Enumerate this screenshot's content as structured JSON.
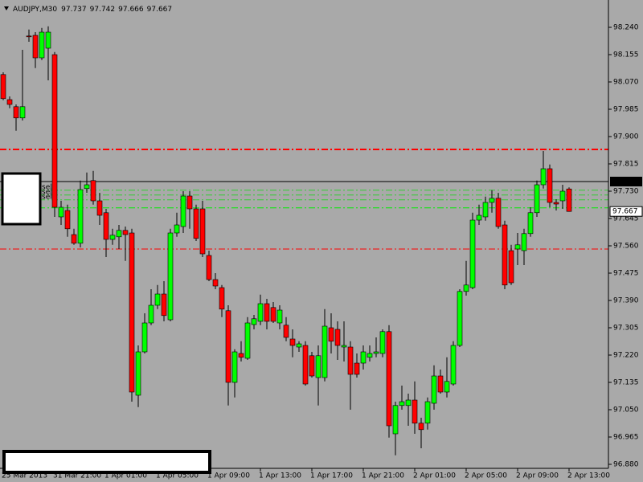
{
  "chart_data": {
    "type": "candlestick",
    "title": "AUDJPY,M30",
    "categories": [
      "25 Mar 2013",
      null,
      null,
      null,
      null,
      null,
      null,
      null,
      "31 Mar 21:00",
      null,
      null,
      null,
      null,
      null,
      null,
      null,
      "1 Apr 01:00",
      null,
      null,
      null,
      null,
      null,
      null,
      null,
      "1 Apr 05:00",
      null,
      null,
      null,
      null,
      null,
      null,
      null,
      "1 Apr 09:00",
      null,
      null,
      null,
      null,
      null,
      null,
      null,
      "1 Apr 13:00",
      null,
      null,
      null,
      null,
      null,
      null,
      null,
      "1 Apr 17:00",
      null,
      null,
      null,
      null,
      null,
      null,
      null,
      "1 Apr 21:00",
      null,
      null,
      null,
      null,
      null,
      null,
      null,
      "2 Apr 01:00",
      null,
      null,
      null,
      null,
      null,
      null,
      null,
      "2 Apr 05:00",
      null,
      null,
      null,
      null,
      null,
      null,
      null,
      "2 Apr 09:00",
      null,
      null,
      null,
      null,
      null,
      null,
      null,
      "2 Apr 13:00"
    ],
    "open": [
      98.093,
      98.015,
      97.993,
      97.958,
      98.213,
      98.215,
      98.145,
      98.175,
      98.155,
      97.65,
      97.67,
      97.595,
      97.568,
      97.738,
      97.763,
      97.7,
      97.663,
      97.58,
      97.588,
      97.608,
      97.6,
      97.095,
      97.23,
      97.32,
      97.375,
      97.41,
      97.33,
      97.6,
      97.62,
      97.715,
      97.675,
      97.675,
      97.53,
      97.455,
      97.43,
      97.358,
      97.135,
      97.225,
      97.21,
      97.315,
      97.325,
      97.38,
      97.368,
      97.32,
      97.313,
      97.27,
      97.245,
      97.25,
      97.218,
      97.15,
      97.15,
      97.305,
      97.3,
      97.245,
      97.245,
      97.195,
      97.195,
      97.213,
      97.225,
      97.225,
      97.293,
      96.975,
      97.063,
      97.063,
      97.08,
      97.008,
      97.008,
      97.07,
      97.155,
      97.105,
      97.13,
      97.25,
      97.418,
      97.43,
      97.64,
      97.65,
      97.695,
      97.708,
      97.625,
      97.545,
      97.55,
      97.545,
      97.598,
      97.663,
      97.75,
      97.8,
      97.695,
      97.7,
      97.737
    ],
    "high": [
      98.1,
      98.025,
      98.0,
      98.17,
      98.233,
      98.225,
      98.238,
      98.243,
      98.163,
      97.7,
      97.688,
      97.613,
      97.763,
      97.788,
      97.793,
      97.725,
      97.675,
      97.613,
      97.625,
      97.62,
      97.613,
      97.25,
      97.35,
      97.425,
      97.438,
      97.45,
      97.613,
      97.663,
      97.73,
      97.73,
      97.688,
      97.7,
      97.545,
      97.475,
      97.438,
      97.375,
      97.238,
      97.263,
      97.338,
      97.345,
      97.408,
      97.395,
      97.385,
      97.375,
      97.338,
      97.3,
      97.263,
      97.263,
      97.23,
      97.25,
      97.363,
      97.35,
      97.325,
      97.325,
      97.263,
      97.225,
      97.25,
      97.25,
      97.275,
      97.3,
      97.313,
      97.075,
      97.125,
      97.1,
      97.138,
      97.025,
      97.088,
      97.188,
      97.175,
      97.213,
      97.263,
      97.425,
      97.513,
      97.663,
      97.688,
      97.713,
      97.733,
      97.725,
      97.638,
      97.563,
      97.6,
      97.613,
      97.68,
      97.763,
      97.855,
      97.813,
      97.705,
      97.75,
      97.742
    ],
    "low": [
      98.013,
      97.988,
      97.918,
      97.95,
      98.195,
      98.113,
      98.138,
      98.075,
      97.65,
      97.625,
      97.588,
      97.563,
      97.555,
      97.725,
      97.688,
      97.625,
      97.525,
      97.563,
      97.55,
      97.513,
      97.075,
      97.058,
      97.225,
      97.313,
      97.363,
      97.325,
      97.325,
      97.588,
      97.6,
      97.613,
      97.575,
      97.525,
      97.45,
      97.425,
      97.338,
      97.063,
      97.088,
      97.2,
      97.205,
      97.3,
      97.313,
      97.3,
      97.32,
      97.3,
      97.263,
      97.213,
      97.23,
      97.125,
      97.15,
      97.063,
      97.138,
      97.225,
      97.205,
      97.2,
      97.05,
      97.15,
      97.175,
      97.2,
      97.213,
      97.213,
      96.963,
      96.908,
      97.05,
      97.0,
      96.975,
      96.93,
      96.988,
      97.05,
      97.1,
      97.088,
      97.125,
      97.245,
      97.405,
      97.425,
      97.625,
      97.638,
      97.663,
      97.613,
      97.425,
      97.438,
      97.5,
      97.5,
      97.588,
      97.65,
      97.738,
      97.68,
      97.67,
      97.675,
      97.666
    ],
    "close": [
      98.018,
      98.0,
      97.958,
      97.993,
      98.212,
      98.145,
      98.225,
      98.225,
      97.68,
      97.68,
      97.613,
      97.568,
      97.735,
      97.75,
      97.7,
      97.655,
      97.58,
      97.593,
      97.608,
      97.595,
      97.105,
      97.23,
      97.32,
      97.375,
      97.41,
      97.343,
      97.6,
      97.625,
      97.715,
      97.675,
      97.583,
      97.535,
      97.455,
      97.435,
      97.363,
      97.135,
      97.23,
      97.213,
      97.32,
      97.333,
      97.38,
      97.325,
      97.325,
      97.36,
      97.275,
      97.25,
      97.255,
      97.13,
      97.155,
      97.218,
      97.31,
      97.263,
      97.25,
      97.25,
      97.16,
      97.16,
      97.23,
      97.225,
      97.23,
      97.293,
      97.0,
      97.063,
      97.075,
      97.08,
      97.008,
      96.988,
      97.075,
      97.155,
      97.105,
      97.138,
      97.25,
      97.418,
      97.438,
      97.64,
      97.655,
      97.695,
      97.708,
      97.62,
      97.438,
      97.445,
      97.563,
      97.598,
      97.663,
      97.75,
      97.8,
      97.695,
      97.69,
      97.73,
      97.667
    ],
    "up_color": "#00ff00",
    "down_color": "#ff0000",
    "wick_color": "#000000",
    "background": "#a9a9a9",
    "ylim": [
      96.8675,
      98.325
    ],
    "yticks": [
      {
        "value": 98.24,
        "label": "98.240"
      },
      98.155,
      {
        "value": 98.07,
        "label": "98.070"
      },
      97.985,
      {
        "value": 97.9,
        "label": "97.900"
      },
      97.815,
      {
        "value": 97.73,
        "label": "97.730"
      },
      97.645,
      {
        "value": 97.56,
        "label": "97.560"
      },
      97.475,
      {
        "value": 97.39,
        "label": "97.390"
      },
      97.305,
      {
        "value": 97.22,
        "label": "97.220"
      },
      97.135,
      {
        "value": 97.05,
        "label": "97.050"
      },
      96.965,
      {
        "value": 96.88,
        "label": "96.880"
      }
    ],
    "ask_line": {
      "value": 97.76,
      "label": "97.760"
    },
    "levels": [
      {
        "value": 97.86,
        "color": "#ff0000"
      },
      {
        "value": 97.55,
        "color": "#ff0000"
      },
      {
        "value": 97.733,
        "color": "#33cc33"
      },
      {
        "value": 97.718,
        "color": "#33cc33"
      },
      {
        "value": 97.703,
        "color": "#33cc33"
      },
      {
        "value": 97.678,
        "color": "#00ee00"
      }
    ],
    "order_labels": [
      "sel",
      "sel",
      "sel"
    ]
  }
}
